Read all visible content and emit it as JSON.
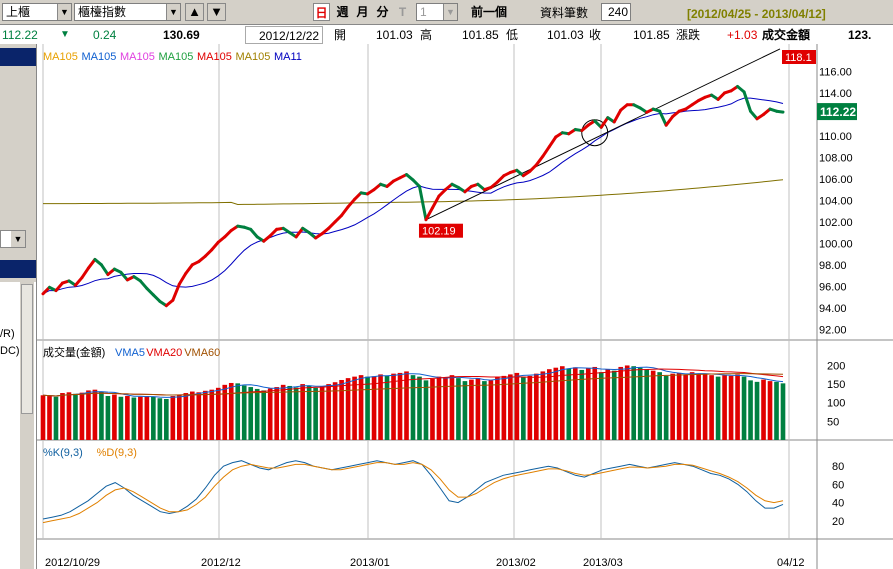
{
  "toolbar": {
    "market_select": "上櫃",
    "index_select": "櫃檯指數",
    "up_arrow_label": "▲",
    "down_arrow_label": "▼",
    "periods": [
      "日",
      "週",
      "月",
      "分",
      "T"
    ],
    "count_select": "1",
    "prev_button": "前一個",
    "data_count_label": "資料筆數",
    "data_count_value": "240",
    "date_range": "[2012/04/25 - 2013/04/12]"
  },
  "quote": {
    "price": "112.22",
    "change_arrow": "▼",
    "change": "0.24",
    "volume": "130.69",
    "date": "2012/12/22",
    "open_label": "開",
    "open": "101.03",
    "high_label": "高",
    "high": "101.85",
    "low_label": "低",
    "low": "101.03",
    "close_label": "收",
    "close": "101.85",
    "change_label": "漲跌",
    "change2": "+1.03",
    "amount_label": "成交金額",
    "amount": "123."
  },
  "price_panel": {
    "legend": [
      {
        "label": "MA105",
        "color": "#e8a000"
      },
      {
        "label": "MA105",
        "color": "#1060d0"
      },
      {
        "label": "MA105",
        "color": "#e040e0"
      },
      {
        "label": "MA105",
        "color": "#20a040"
      },
      {
        "label": "MA105",
        "color": "#e00000"
      },
      {
        "label": "MA105",
        "color": "#a08000"
      },
      {
        "label": "MA11",
        "color": "#0000c0"
      }
    ],
    "y_ticks": [
      "116.00",
      "114.00",
      "112.00",
      "110.00",
      "108.00",
      "106.00",
      "104.00",
      "102.00",
      "100.00",
      "98.00",
      "96.00",
      "94.00",
      "92.00"
    ],
    "last_price_badge": "112.22",
    "high_badge": "118.1",
    "low_badge": "102.19"
  },
  "volume_panel": {
    "title": "成交量(金額)",
    "legend": [
      {
        "label": "VMA5",
        "color": "#1060d0"
      },
      {
        "label": "VMA20",
        "color": "#e00000"
      },
      {
        "label": "VMA60",
        "color": "#a05000"
      }
    ],
    "y_ticks": [
      "200",
      "150",
      "100",
      "50"
    ]
  },
  "kd_panel": {
    "legend": [
      {
        "label": "%K(9,3)",
        "color": "#1060a0"
      },
      {
        "label": "%D(9,3)",
        "color": "#e08000"
      }
    ],
    "y_ticks": [
      "80",
      "60",
      "40",
      "20"
    ]
  },
  "x_axis": [
    "2012/10/29",
    "2012/12",
    "2013/01",
    "2013/02",
    "2013/03",
    "04/12"
  ],
  "side_labels": [
    "/R)",
    "DC)"
  ],
  "colors": {
    "up": "#e00000",
    "down": "#008040",
    "ma_slow": "#807000",
    "ma_fast": "#0000c0"
  },
  "chart_data": {
    "type": "line",
    "title": "",
    "xlabel": "",
    "ylabel": "",
    "ylim": [
      91,
      118
    ],
    "close": [
      95.3,
      95.9,
      95.6,
      96.3,
      96.5,
      96.1,
      96.8,
      97.7,
      98.5,
      98.0,
      97.1,
      97.6,
      97.3,
      96.6,
      96.9,
      96.5,
      95.8,
      95.2,
      94.6,
      94.2,
      94.7,
      96.2,
      97.2,
      98.0,
      98.3,
      98.8,
      99.4,
      100.1,
      100.6,
      101.2,
      101.6,
      101.5,
      101.3,
      100.6,
      100.2,
      100.7,
      101.3,
      101.4,
      101.0,
      100.6,
      101.4,
      101.0,
      100.5,
      100.9,
      101.4,
      102.0,
      102.6,
      103.4,
      104.1,
      104.7,
      104.6,
      105.0,
      105.5,
      105.3,
      105.8,
      106.1,
      106.4,
      105.9,
      105.3,
      102.2,
      103.3,
      104.4,
      105.0,
      105.5,
      105.2,
      104.8,
      105.3,
      105.5,
      105.0,
      105.2,
      105.7,
      106.3,
      106.6,
      106.8,
      106.3,
      106.7,
      107.3,
      108.1,
      109.0,
      109.9,
      110.3,
      110.2,
      110.6,
      110.5,
      111.0,
      111.4,
      110.8,
      111.7,
      111.3,
      112.4,
      112.9,
      112.9,
      112.6,
      112.2,
      112.5,
      112.3,
      111.0,
      111.8,
      112.3,
      112.5,
      112.9,
      113.3,
      113.6,
      113.8,
      113.4,
      114.0,
      114.2,
      114.6,
      114.1,
      112.3,
      111.6,
      112.0,
      112.5,
      112.3,
      112.22
    ],
    "volume": [
      120,
      118,
      116,
      126,
      128,
      124,
      127,
      133,
      135,
      130,
      118,
      122,
      116,
      118,
      114,
      116,
      118,
      116,
      112,
      110,
      118,
      122,
      126,
      130,
      128,
      132,
      135,
      140,
      148,
      153,
      152,
      146,
      142,
      137,
      133,
      138,
      142,
      148,
      145,
      141,
      150,
      146,
      140,
      144,
      150,
      155,
      161,
      166,
      170,
      174,
      170,
      171,
      176,
      172,
      178,
      180,
      184,
      174,
      170,
      160,
      164,
      170,
      168,
      174,
      166,
      158,
      162,
      166,
      158,
      160,
      168,
      172,
      176,
      180,
      170,
      172,
      178,
      184,
      190,
      194,
      198,
      192,
      195,
      188,
      192,
      196,
      182,
      190,
      186,
      196,
      200,
      198,
      194,
      190,
      186,
      182,
      172,
      178,
      180,
      175,
      182,
      176,
      178,
      174,
      170,
      174,
      172,
      176,
      170,
      160,
      156,
      162,
      158,
      156,
      152
    ],
    "vol_dir": [
      1,
      1,
      0,
      1,
      1,
      0,
      1,
      1,
      1,
      0,
      0,
      1,
      0,
      1,
      0,
      1,
      1,
      0,
      0,
      0,
      1,
      1,
      1,
      1,
      1,
      1,
      1,
      1,
      1,
      1,
      0,
      0,
      0,
      0,
      0,
      1,
      1,
      1,
      0,
      0,
      1,
      0,
      0,
      1,
      1,
      1,
      1,
      1,
      1,
      1,
      0,
      1,
      1,
      0,
      1,
      1,
      1,
      0,
      0,
      0,
      1,
      1,
      1,
      1,
      0,
      0,
      1,
      1,
      0,
      1,
      1,
      1,
      1,
      1,
      0,
      1,
      1,
      1,
      1,
      1,
      1,
      0,
      1,
      0,
      1,
      1,
      0,
      1,
      0,
      1,
      1,
      0,
      0,
      0,
      1,
      0,
      0,
      1,
      1,
      1,
      1,
      1,
      1,
      1,
      0,
      1,
      1,
      1,
      0,
      0,
      0,
      1,
      1,
      0,
      0
    ],
    "k": [
      22,
      24,
      26,
      30,
      36,
      42,
      50,
      58,
      62,
      56,
      48,
      42,
      36,
      30,
      28,
      30,
      36,
      44,
      56,
      70,
      80,
      84,
      86,
      82,
      78,
      76,
      80,
      84,
      86,
      84,
      80,
      78,
      76,
      78,
      80,
      82,
      84,
      86,
      84,
      82,
      84,
      86,
      82,
      70,
      56,
      42,
      40,
      46,
      54,
      62,
      66,
      70,
      72,
      74,
      76,
      78,
      80,
      78,
      74,
      70,
      68,
      72,
      76,
      78,
      80,
      82,
      80,
      78,
      80,
      82,
      84,
      82,
      80,
      76,
      72,
      70,
      66,
      60,
      52,
      42,
      34,
      34,
      38
    ],
    "d": [
      18,
      20,
      22,
      24,
      28,
      34,
      40,
      48,
      54,
      56,
      52,
      46,
      40,
      34,
      30,
      30,
      32,
      38,
      46,
      58,
      68,
      76,
      80,
      82,
      80,
      78,
      78,
      80,
      82,
      82,
      80,
      78,
      76,
      76,
      78,
      80,
      82,
      84,
      84,
      82,
      82,
      84,
      82,
      76,
      66,
      54,
      46,
      46,
      50,
      56,
      62,
      66,
      69,
      71,
      73,
      75,
      77,
      77,
      75,
      72,
      70,
      71,
      73,
      75,
      77,
      79,
      79,
      78,
      79,
      80,
      82,
      82,
      81,
      78,
      75,
      72,
      68,
      63,
      56,
      48,
      42,
      40,
      42
    ]
  }
}
